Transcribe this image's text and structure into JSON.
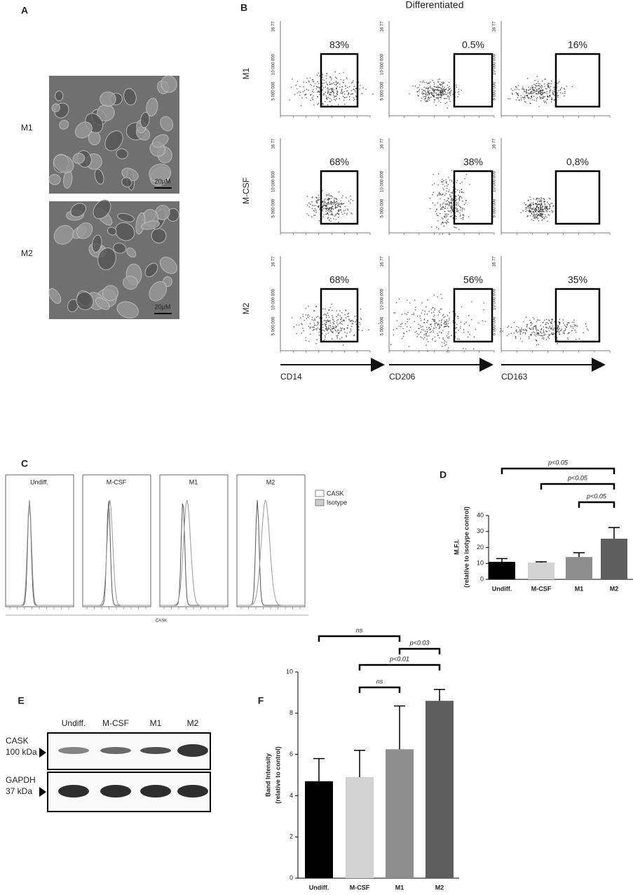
{
  "panel_a": {
    "label": "A",
    "rows": [
      "M1",
      "M2"
    ],
    "scale_bar": "20µM"
  },
  "panel_b": {
    "label": "B",
    "title": "Differentiated",
    "rows": [
      "M1",
      "M-CSF",
      "M2"
    ],
    "markers": [
      "CD14",
      "CD206",
      "CD163"
    ],
    "gates": [
      [
        "83%",
        "0.5%",
        "16%"
      ],
      [
        "68%",
        "38%",
        "0,8%"
      ],
      [
        "68%",
        "56%",
        "35%"
      ]
    ],
    "y_tick_labels": [
      "16 77",
      "10 000 000",
      "5 000 000"
    ]
  },
  "panel_c": {
    "label": "C",
    "conditions": [
      "Undiff.",
      "M-CSF",
      "M1",
      "M2"
    ],
    "legend": [
      "CASK",
      "Isotype"
    ],
    "x_label": "CASK"
  },
  "panel_e": {
    "label": "E",
    "lanes": [
      "Undiff.",
      "M-CSF",
      "M1",
      "M2"
    ],
    "blots": [
      {
        "protein": "CASK",
        "size": "100 kDa"
      },
      {
        "protein": "GAPDH",
        "size": "37 kDa"
      }
    ]
  },
  "chart_data": [
    {
      "type": "bar",
      "label": "D",
      "categories": [
        "Undiff.",
        "M-CSF",
        "M1",
        "M2"
      ],
      "values": [
        11,
        10.5,
        14,
        25.5
      ],
      "errors": [
        2,
        0.5,
        2.7,
        7
      ],
      "colors": [
        "#000000",
        "#d2d2d2",
        "#8e8e8e",
        "#5e5e5e"
      ],
      "ylim": [
        0,
        40
      ],
      "yticks": [
        0,
        10,
        20,
        30,
        40
      ],
      "y_label": [
        "M.F.I.",
        "(relative to  isotype control)"
      ],
      "annotations": [
        "p<0.05",
        "p<0.05",
        "p<0.05"
      ]
    },
    {
      "type": "bar",
      "label": "F",
      "categories": [
        "Undiff.",
        "M-CSF",
        "M1",
        "M2"
      ],
      "values": [
        4.7,
        4.9,
        6.25,
        8.6
      ],
      "errors": [
        1.1,
        1.3,
        2.1,
        0.55
      ],
      "colors": [
        "#000000",
        "#d2d2d2",
        "#8e8e8e",
        "#5e5e5e"
      ],
      "ylim": [
        0,
        10
      ],
      "yticks": [
        0,
        2,
        4,
        6,
        8,
        10
      ],
      "y_label": [
        "Band Intensity",
        "(relative to control)"
      ],
      "annotations": [
        "ns",
        "p<0.03",
        "p<0.01",
        "ns"
      ]
    }
  ]
}
